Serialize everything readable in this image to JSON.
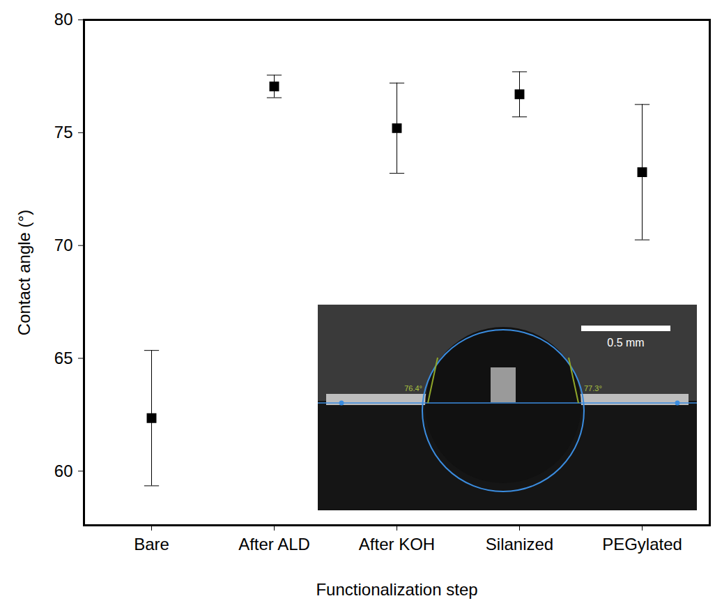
{
  "chart_data": {
    "type": "scatter",
    "x_label": "Functionalization step",
    "y_label": "Contact angle (°)",
    "categories": [
      "Bare",
      "After ALD",
      "After KOH",
      "Silanized",
      "PEGylated"
    ],
    "values": [
      62.35,
      77.05,
      75.2,
      76.7,
      73.25
    ],
    "errors": [
      3.0,
      0.5,
      2.0,
      1.0,
      3.0
    ],
    "color": "#000000",
    "marker": "square",
    "ylim": [
      57.6,
      80
    ],
    "yticks": [
      60,
      65,
      70,
      75,
      80
    ],
    "grid": false,
    "inset": {
      "scale_bar": "0.5 mm",
      "angle_labels": [
        "76.4°",
        "77.3°"
      ]
    }
  }
}
